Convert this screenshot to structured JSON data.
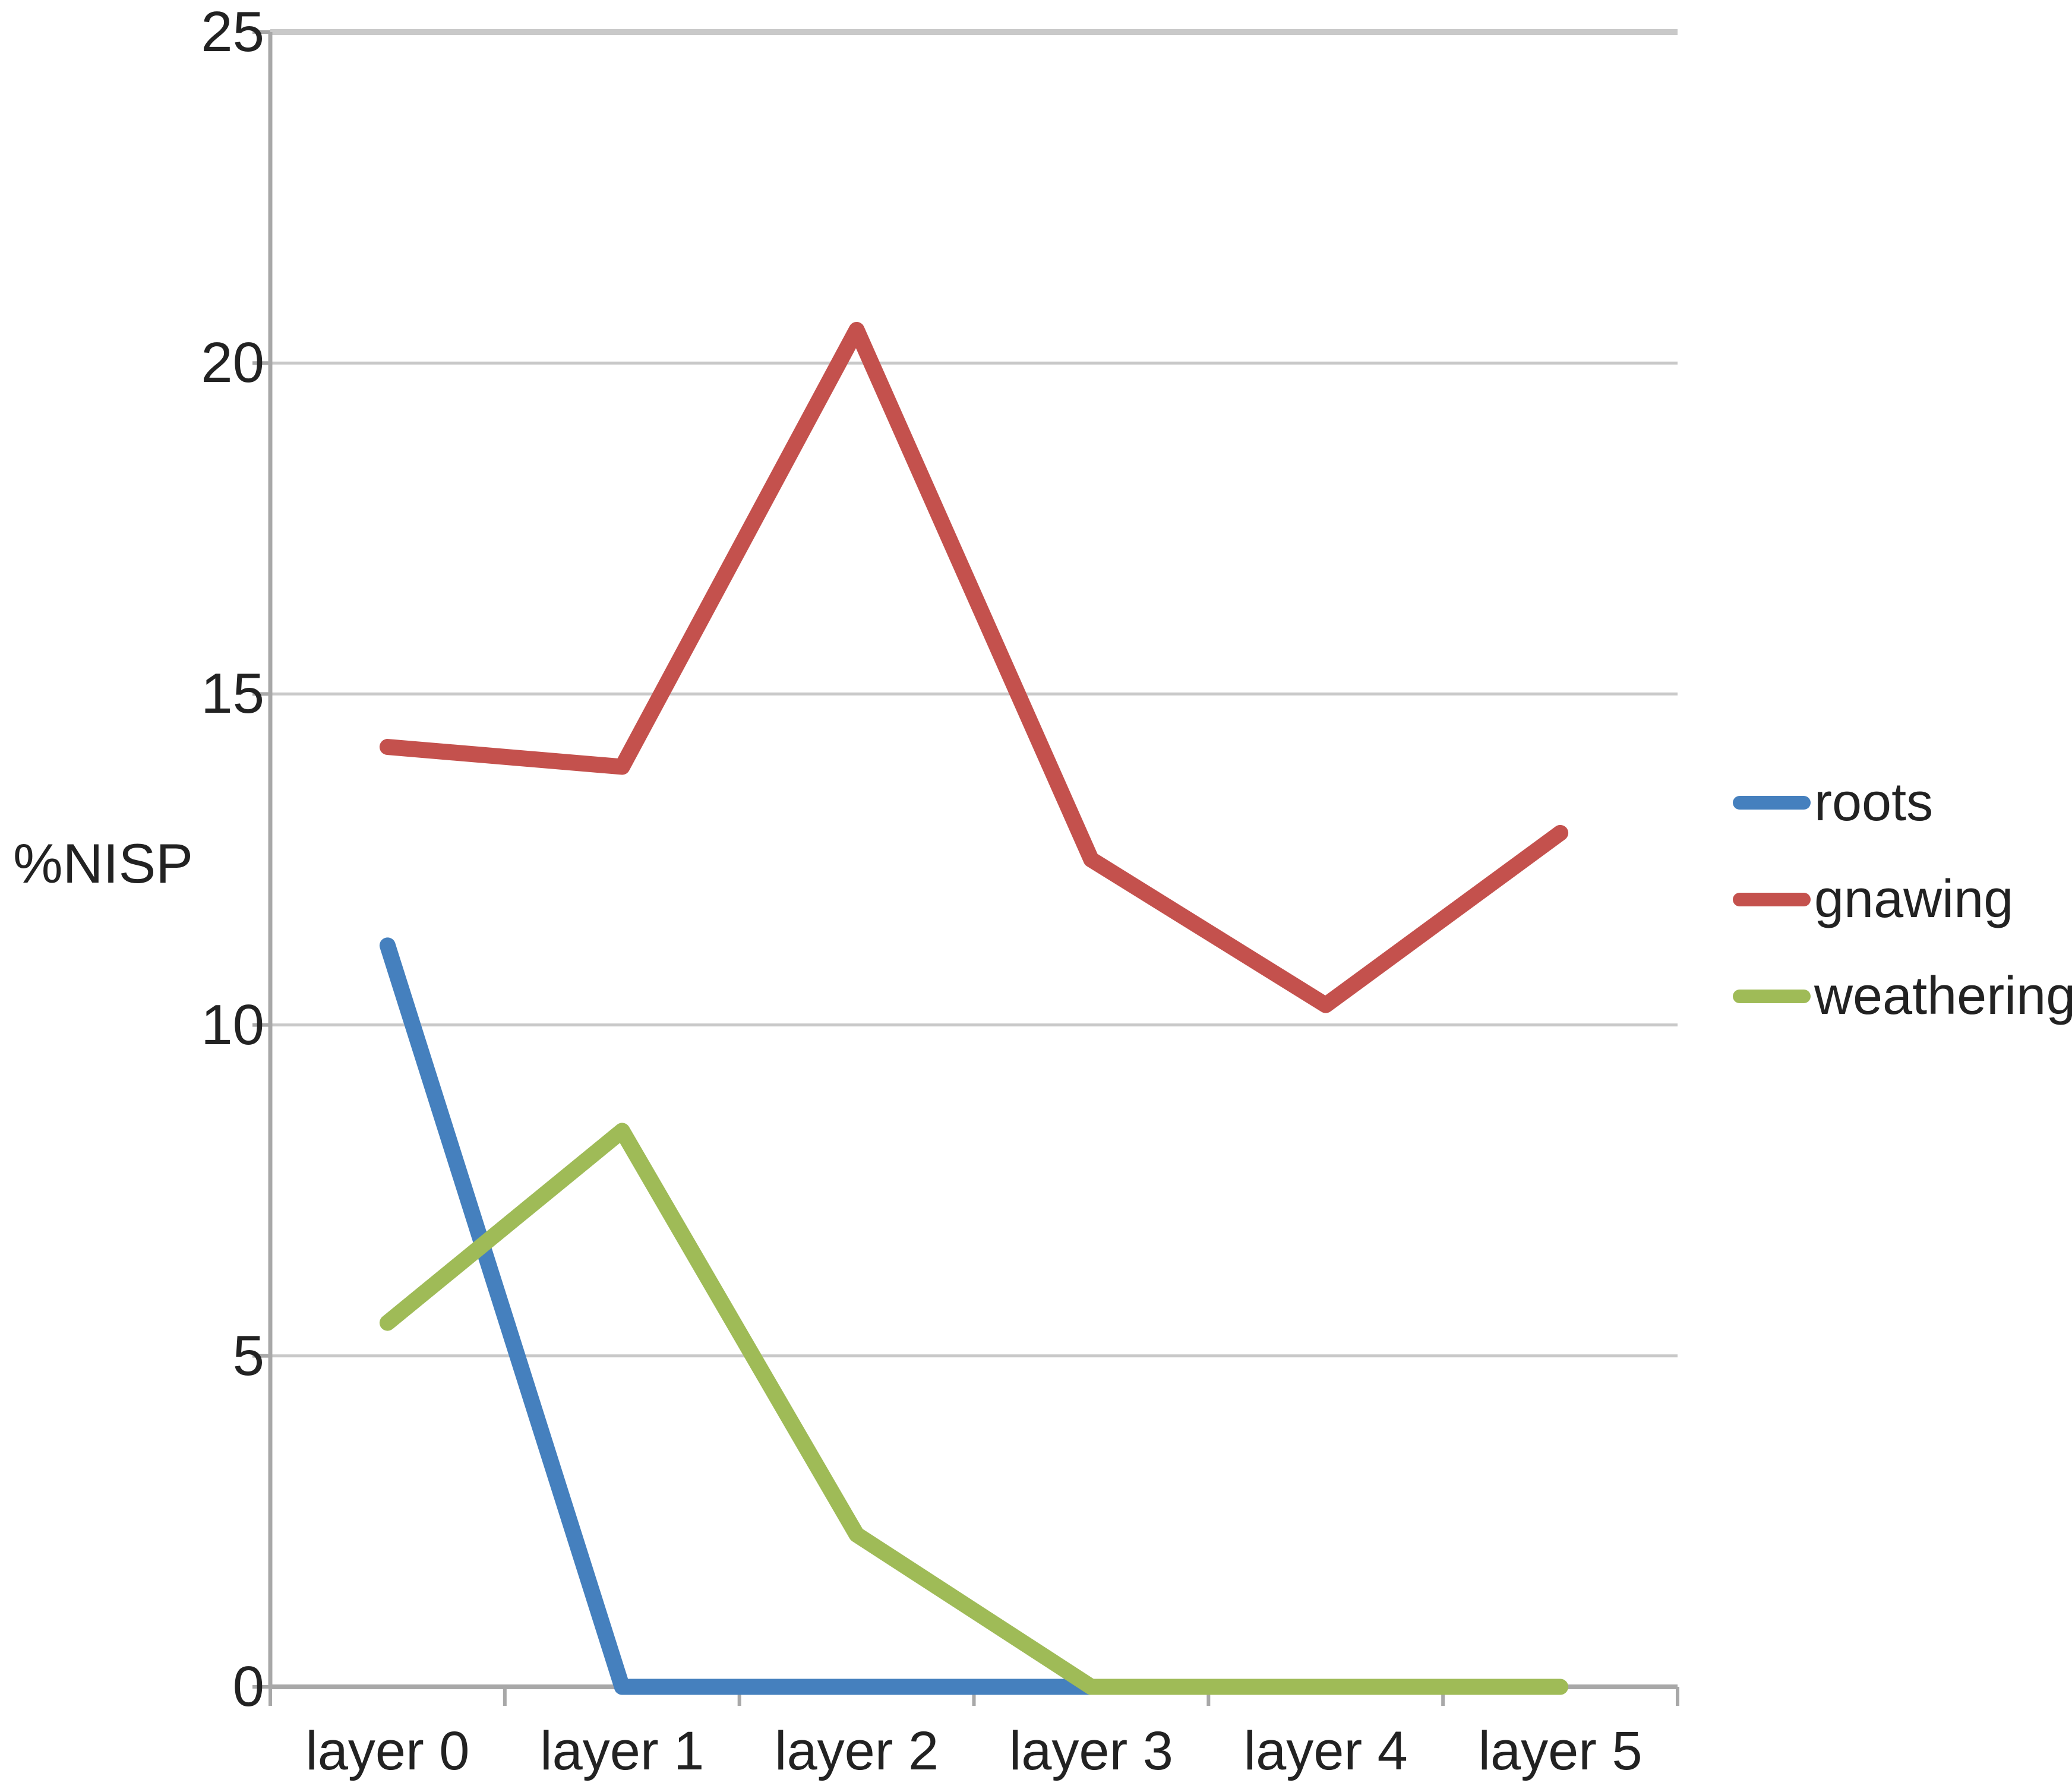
{
  "chart_data": {
    "type": "line",
    "title": "",
    "ylabel": "%NISP",
    "xlabel": "",
    "categories": [
      "layer 0",
      "layer 1",
      "layer 2",
      "layer 3",
      "layer 4",
      "layer 5"
    ],
    "y_ticks": [
      0,
      5,
      10,
      15,
      20,
      25
    ],
    "ylim": [
      0,
      25
    ],
    "grid": true,
    "legend_position": "right",
    "series": [
      {
        "name": "roots",
        "color": "#4580BE",
        "values": [
          11.2,
          0,
          0,
          0,
          null,
          null
        ]
      },
      {
        "name": "gnawing",
        "color": "#C4514D",
        "values": [
          14.2,
          13.9,
          20.5,
          12.5,
          10.3,
          12.9
        ]
      },
      {
        "name": "weathering",
        "color": "#9FBB57",
        "values": [
          5.5,
          8.4,
          2.3,
          0,
          0,
          0
        ]
      }
    ],
    "colors": {
      "gridline": "#C9C9C9",
      "axis": "#A8A8A8",
      "text": "#222222"
    }
  }
}
